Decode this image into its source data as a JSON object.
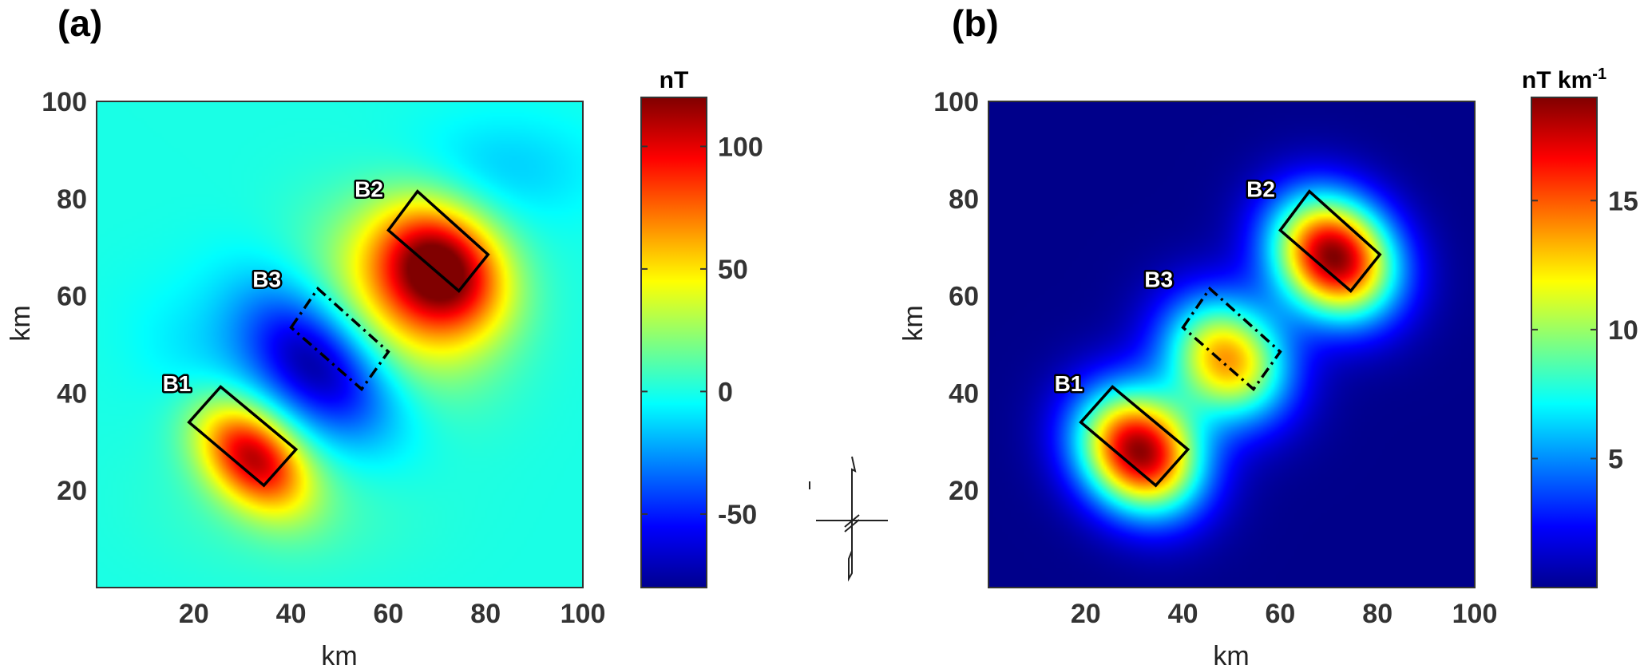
{
  "chart_data": [
    {
      "id": "a",
      "panel_label": "(a)",
      "type": "heatmap",
      "xlabel": "km",
      "ylabel": "km",
      "xlim": [
        0,
        100
      ],
      "ylim": [
        0,
        100
      ],
      "xticks": [
        20,
        40,
        60,
        80,
        100
      ],
      "yticks": [
        20,
        40,
        60,
        80,
        100
      ],
      "colormap": "jet",
      "colorbar": {
        "title": "nT",
        "title_sup": "",
        "range": [
          -80,
          120
        ],
        "ticks": [
          -50,
          0,
          50,
          100
        ]
      },
      "background_value": 0,
      "field_features": [
        {
          "kind": "positive",
          "center": [
            32,
            27
          ],
          "peak": 105,
          "spread_along": 9,
          "spread_across": 6,
          "orientation_deg": -45
        },
        {
          "kind": "positive",
          "center": [
            71,
            66
          ],
          "peak": 118,
          "spread_along": 10,
          "spread_across": 8,
          "orientation_deg": -45
        },
        {
          "kind": "positive",
          "center": [
            62,
            58
          ],
          "peak": 45,
          "spread_along": 14,
          "spread_across": 10,
          "orientation_deg": -45
        },
        {
          "kind": "negative",
          "center": [
            45,
            46
          ],
          "peak": -75,
          "spread_along": 13,
          "spread_across": 8,
          "orientation_deg": -45
        },
        {
          "kind": "negative",
          "center": [
            84,
            86
          ],
          "peak": -14,
          "spread_along": 14,
          "spread_across": 8,
          "orientation_deg": 0
        },
        {
          "kind": "negative",
          "center": [
            22,
            46
          ],
          "peak": -10,
          "spread_along": 12,
          "spread_across": 8,
          "orientation_deg": -45
        },
        {
          "kind": "positive",
          "center": [
            40,
            18
          ],
          "peak": 10,
          "spread_along": 18,
          "spread_across": 10,
          "orientation_deg": 0
        }
      ],
      "bodies": [
        {
          "label": "B1",
          "style": "solid",
          "corners": [
            [
              19,
              34
            ],
            [
              25.5,
              41.3
            ],
            [
              41,
              28.4
            ],
            [
              34.4,
              21
            ]
          ],
          "label_at": [
            16.5,
            42
          ]
        },
        {
          "label": "B2",
          "style": "solid",
          "corners": [
            [
              60,
              73.5
            ],
            [
              66,
              81.5
            ],
            [
              80.5,
              68.5
            ],
            [
              74.5,
              61
            ]
          ],
          "label_at": [
            56,
            82
          ]
        },
        {
          "label": "B3",
          "style": "dashdot",
          "corners": [
            [
              40,
              53.5
            ],
            [
              45.5,
              61.5
            ],
            [
              60,
              48.5
            ],
            [
              54.5,
              40.8
            ]
          ],
          "label_at": [
            35,
            63.5
          ]
        }
      ]
    },
    {
      "id": "b",
      "panel_label": "(b)",
      "type": "heatmap",
      "xlabel": "km",
      "ylabel": "km",
      "xlim": [
        0,
        100
      ],
      "ylim": [
        0,
        100
      ],
      "xticks": [
        20,
        40,
        60,
        80,
        100
      ],
      "yticks": [
        20,
        40,
        60,
        80,
        100
      ],
      "colormap": "jet",
      "colorbar": {
        "title": "nT km",
        "title_sup": "-1",
        "range": [
          0,
          19
        ],
        "ticks": [
          5,
          10,
          15
        ]
      },
      "background_value": 0.2,
      "field_features": [
        {
          "kind": "positive",
          "center": [
            31,
            28
          ],
          "peak": 18.5,
          "spread_along": 9.5,
          "spread_across": 8,
          "orientation_deg": -45
        },
        {
          "kind": "positive",
          "center": [
            49,
            47
          ],
          "peak": 13.5,
          "spread_along": 9.5,
          "spread_across": 8,
          "orientation_deg": -45
        },
        {
          "kind": "positive",
          "center": [
            71,
            68
          ],
          "peak": 18.8,
          "spread_along": 9.5,
          "spread_across": 8,
          "orientation_deg": -45
        }
      ],
      "bodies": [
        {
          "label": "B1",
          "style": "solid",
          "corners": [
            [
              19,
              34
            ],
            [
              25.5,
              41.3
            ],
            [
              41,
              28.4
            ],
            [
              34.4,
              21
            ]
          ],
          "label_at": [
            16.5,
            42
          ]
        },
        {
          "label": "B2",
          "style": "solid",
          "corners": [
            [
              60,
              73.5
            ],
            [
              66,
              81.5
            ],
            [
              80.5,
              68.5
            ],
            [
              74.5,
              61
            ]
          ],
          "label_at": [
            56,
            82
          ]
        },
        {
          "label": "B3",
          "style": "dashdot",
          "corners": [
            [
              40,
              53.5
            ],
            [
              45.5,
              61.5
            ],
            [
              60,
              48.5
            ],
            [
              54.5,
              40.8
            ]
          ],
          "label_at": [
            35,
            63.5
          ]
        }
      ]
    }
  ],
  "north_arrow": {
    "present": true,
    "label": ""
  }
}
